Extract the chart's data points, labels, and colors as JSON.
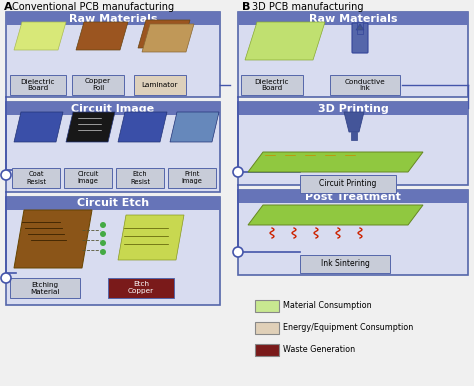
{
  "bg_color": "#f0f0f0",
  "title_a": "A   Conventional PCB manufacturing",
  "title_b": "B    3D PCB manufacturing",
  "hdr_color": "#6674b8",
  "border_color": "#5566aa",
  "section_bg": "#d8dcf0",
  "lbl_bg": "#c8ccd8",
  "lbl_bg_green": "#c8e890",
  "lbl_bg_tan": "#e0d0b8",
  "lbl_bg_dark": "#7a1a1a",
  "conn_color": "#4455aa",
  "legend": [
    {
      "label": "Material Consumption",
      "color": "#c8e890"
    },
    {
      "label": "Energy/Equipment Consumption",
      "color": "#e0d0b8"
    },
    {
      "label": "Waste Generation",
      "color": "#7a1a1a"
    }
  ]
}
